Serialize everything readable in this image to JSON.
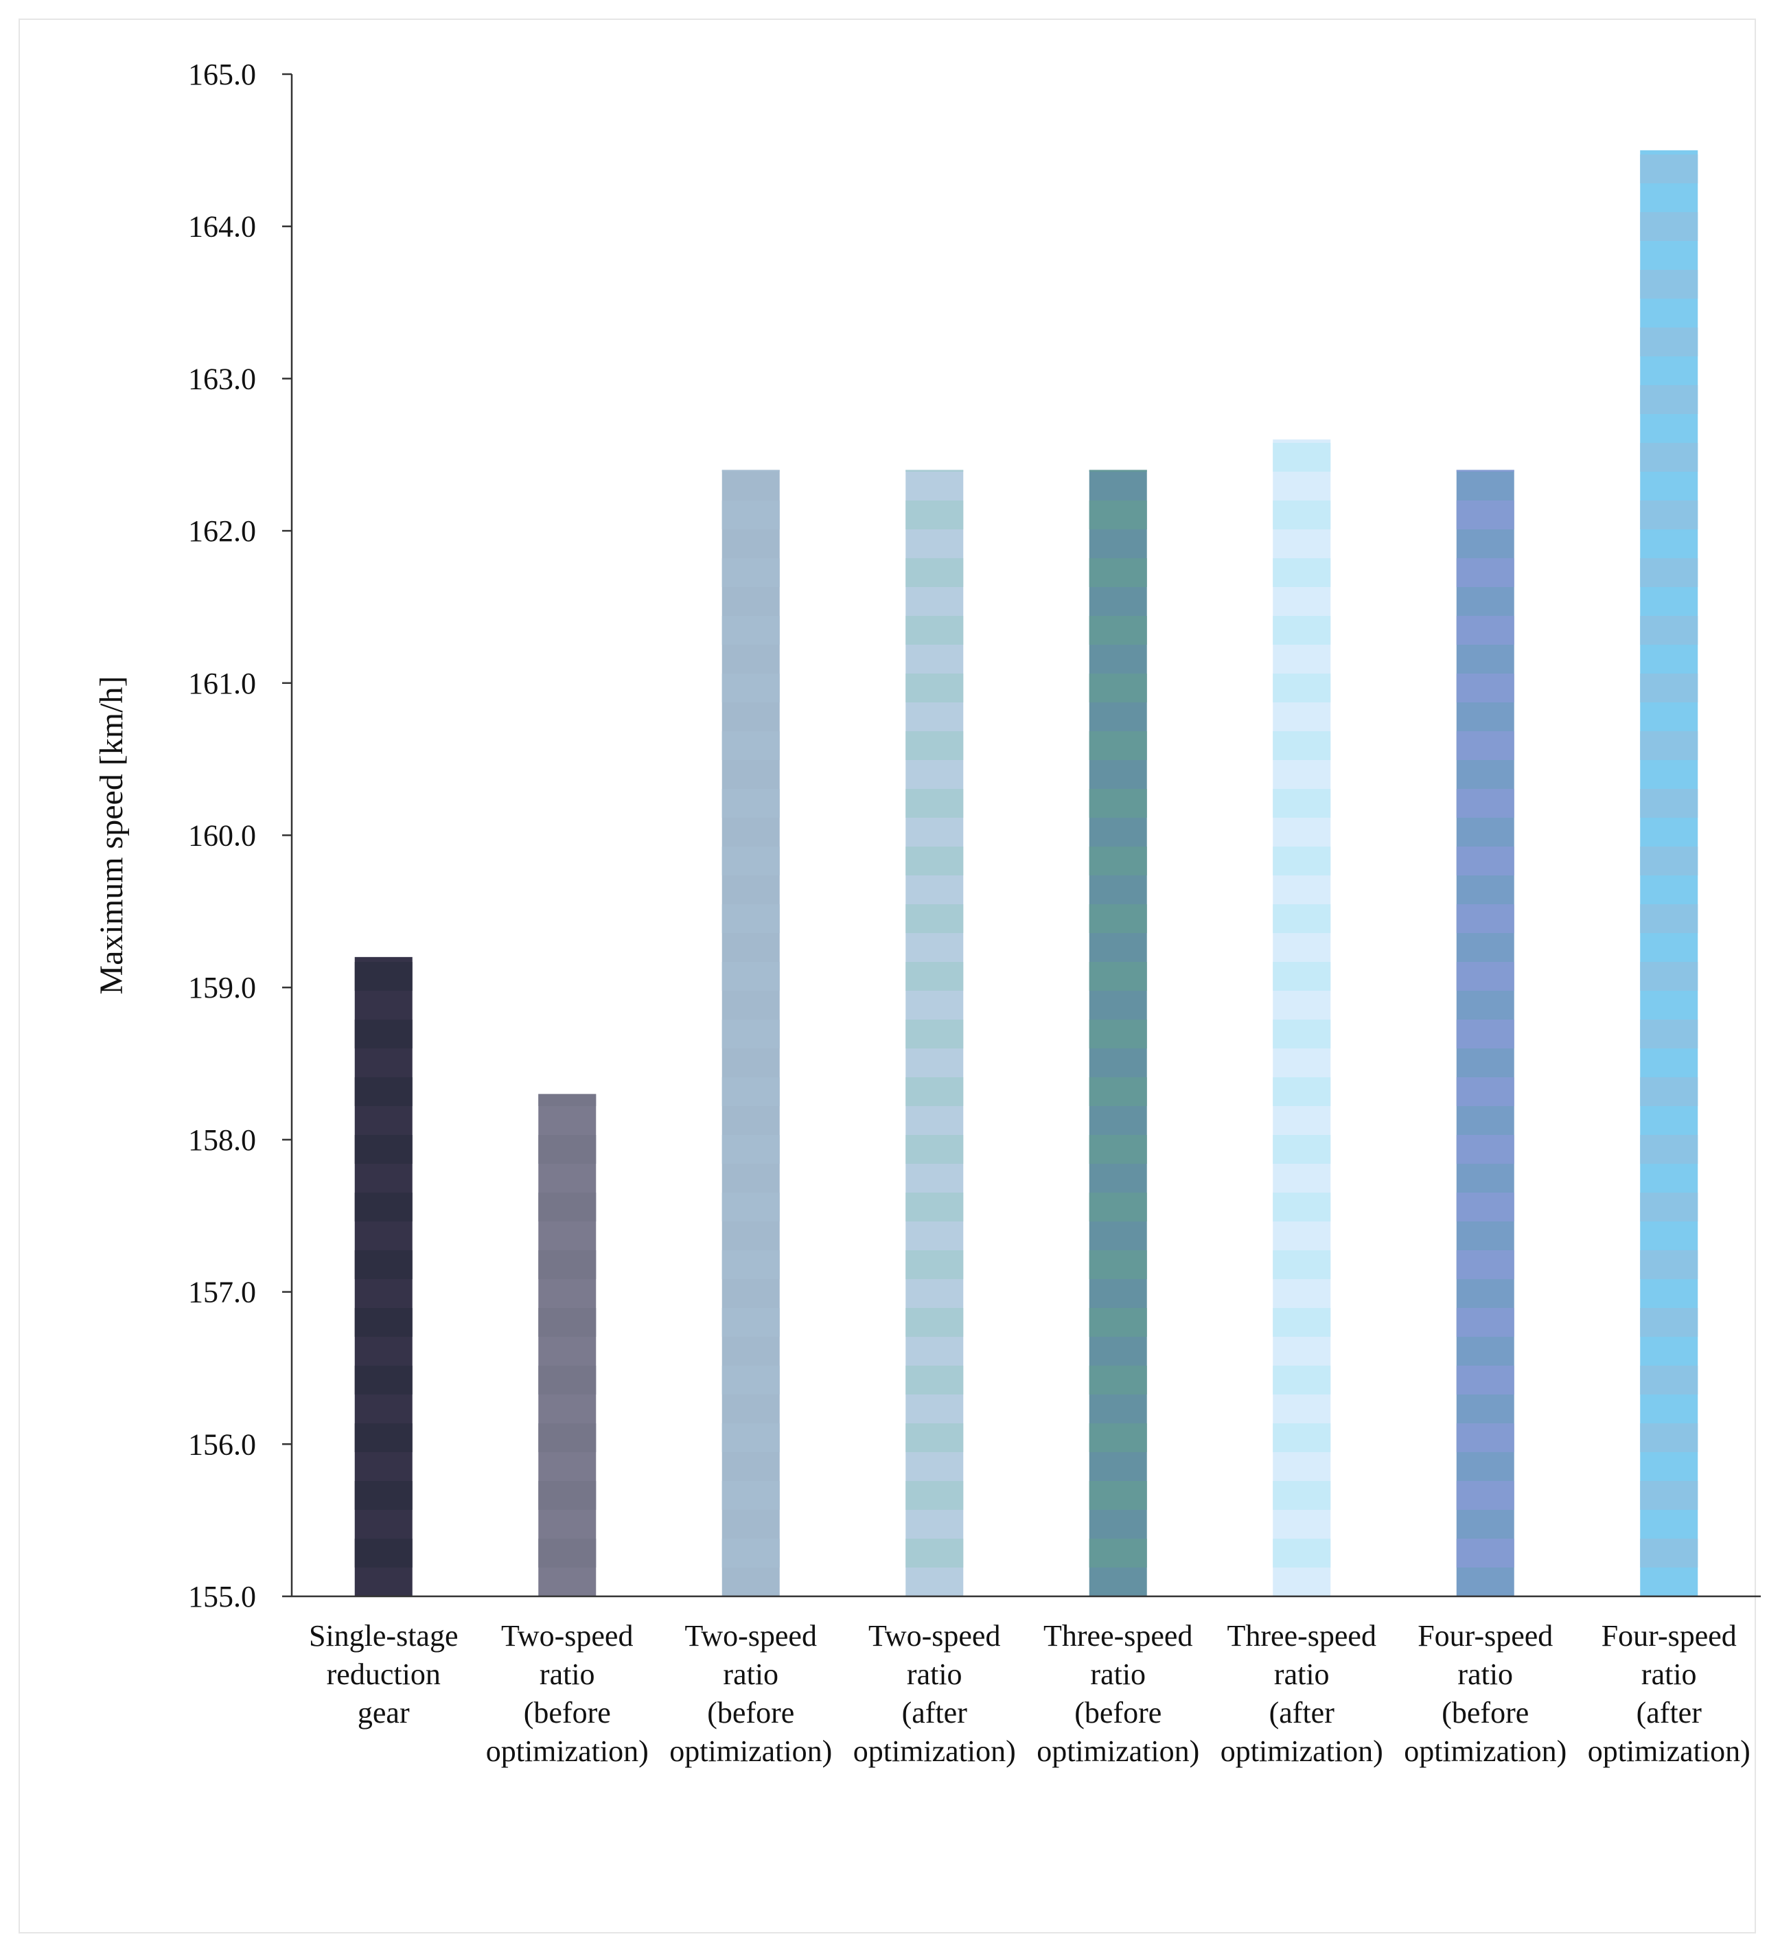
{
  "chart_data": {
    "type": "bar",
    "title": "",
    "xlabel": "",
    "ylabel": "Maximum speed [km/h]",
    "ylim": [
      155.0,
      165.0
    ],
    "yticks": [
      "155.0",
      "156.0",
      "157.0",
      "158.0",
      "159.0",
      "160.0",
      "161.0",
      "162.0",
      "163.0",
      "164.0",
      "165.0"
    ],
    "grid": false,
    "categories": [
      [
        "Single-stage",
        "reduction",
        "gear"
      ],
      [
        "Two-speed",
        "ratio",
        "(before",
        "optimization)"
      ],
      [
        "Two-speed",
        "ratio",
        "(before",
        "optimization)"
      ],
      [
        "Two-speed",
        "ratio",
        "(after",
        "optimization)"
      ],
      [
        "Three-speed",
        "ratio",
        "(before",
        "optimization)"
      ],
      [
        "Three-speed",
        "ratio",
        "(after",
        "optimization)"
      ],
      [
        "Four-speed",
        "ratio",
        "(before",
        "optimization)"
      ],
      [
        "Four-speed",
        "ratio",
        "(after",
        "optimization)"
      ]
    ],
    "values": [
      159.2,
      158.3,
      162.4,
      162.4,
      162.4,
      162.6,
      162.4,
      164.5
    ],
    "bar_colors": [
      [
        "#363349",
        "#2e2f42"
      ],
      [
        "#7b7a8e",
        "#767689"
      ],
      [
        "#a3b9cd",
        "#a5bcd0"
      ],
      [
        "#b6cde0",
        "#a7cbd3"
      ],
      [
        "#6491a2",
        "#649998"
      ],
      [
        "#d8ecfb",
        "#c5eaf8"
      ],
      [
        "#769dc6",
        "#849bd2"
      ],
      [
        "#7ecbef",
        "#8cc3e4"
      ]
    ]
  }
}
